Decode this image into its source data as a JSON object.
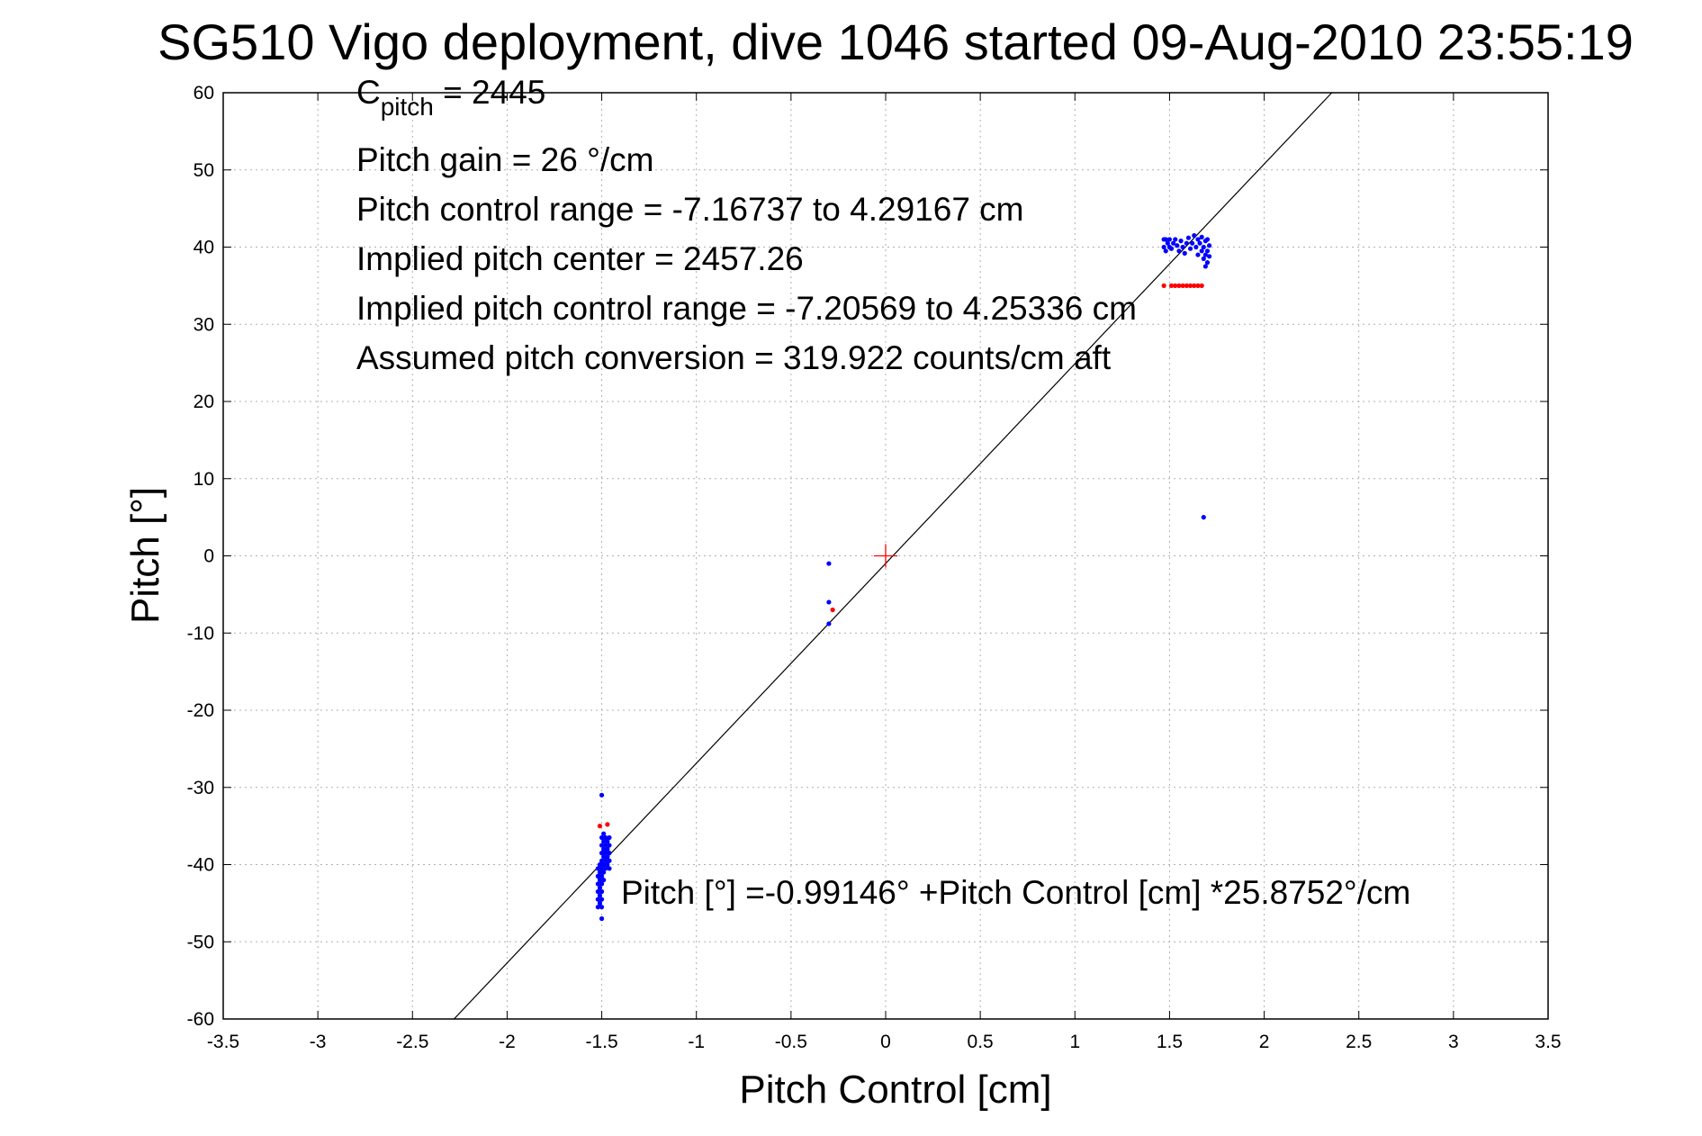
{
  "chart_data": {
    "type": "scatter",
    "title": "SG510 Vigo deployment, dive 1046 started 09-Aug-2010 23:55:19",
    "xlabel": "Pitch Control [cm]",
    "ylabel": "Pitch [°]",
    "xlim": [
      -3.5,
      3.5
    ],
    "ylim": [
      -60,
      60
    ],
    "grid": true,
    "x_ticks": [
      -3.5,
      -3,
      -2.5,
      -2,
      -1.5,
      -1,
      -0.5,
      0,
      0.5,
      1,
      1.5,
      2,
      2.5,
      3,
      3.5
    ],
    "x_tick_labels": [
      "-3.5",
      "-3",
      "-2.5",
      "-2",
      "-1.5",
      "-1",
      "-0.5",
      "0",
      "0.5",
      "1",
      "1.5",
      "2",
      "2.5",
      "3",
      "3.5"
    ],
    "y_ticks": [
      60,
      50,
      40,
      30,
      20,
      10,
      0,
      -10,
      -20,
      -30,
      -40,
      -50,
      -60
    ],
    "y_tick_labels": [
      "60",
      "50",
      "40",
      "30",
      "20",
      "10",
      "0",
      "-10",
      "-20",
      "-30",
      "-40",
      "-50",
      "-60"
    ],
    "fit_line": {
      "intercept": -0.99146,
      "slope": 25.8752,
      "color": "#000000"
    },
    "center_marker": {
      "x": 0,
      "y": 0,
      "color": "#ff0000"
    },
    "annotations": {
      "c_pitch_main": "C",
      "c_pitch_sub": "pitch",
      "c_pitch_value": " = 2445",
      "pitch_gain": "Pitch gain = 26 °/cm",
      "pitch_control_range": "Pitch control range = -7.16737 to 4.29167 cm",
      "implied_pitch_center": "Implied pitch center = 2457.26",
      "implied_pitch_control_range": "Implied pitch control range = -7.20569 to 4.25336 cm",
      "assumed_pitch_conversion": "Assumed pitch conversion = 319.922 counts/cm aft",
      "fit_equation": "Pitch [°] =-0.99146° +Pitch Control [cm] *25.8752°/cm"
    },
    "series": [
      {
        "color": "#0000ff",
        "points": [
          [
            -1.52,
            -40.5
          ],
          [
            -1.52,
            -41.5
          ],
          [
            -1.52,
            -42.5
          ],
          [
            -1.52,
            -43.5
          ],
          [
            -1.52,
            -44.5
          ],
          [
            -1.52,
            -45.5
          ],
          [
            -1.51,
            -40.0
          ],
          [
            -1.51,
            -41.0
          ],
          [
            -1.51,
            -42.0
          ],
          [
            -1.51,
            -43.0
          ],
          [
            -1.51,
            -44.0
          ],
          [
            -1.51,
            -45.0
          ],
          [
            -1.5,
            -36.5
          ],
          [
            -1.5,
            -37.5
          ],
          [
            -1.5,
            -38.5
          ],
          [
            -1.5,
            -39.5
          ],
          [
            -1.5,
            -40.5
          ],
          [
            -1.5,
            -41.5
          ],
          [
            -1.5,
            -42.5
          ],
          [
            -1.5,
            -43.5
          ],
          [
            -1.5,
            -44.5
          ],
          [
            -1.5,
            -45.5
          ],
          [
            -1.5,
            -47.0
          ],
          [
            -1.5,
            -31.0
          ],
          [
            -1.49,
            -36.0
          ],
          [
            -1.49,
            -37.0
          ],
          [
            -1.49,
            -38.0
          ],
          [
            -1.49,
            -39.0
          ],
          [
            -1.49,
            -40.0
          ],
          [
            -1.49,
            -41.0
          ],
          [
            -1.49,
            -42.0
          ],
          [
            -1.48,
            -36.5
          ],
          [
            -1.48,
            -37.5
          ],
          [
            -1.48,
            -38.5
          ],
          [
            -1.48,
            -39.5
          ],
          [
            -1.48,
            -40.5
          ],
          [
            -1.47,
            -37.0
          ],
          [
            -1.47,
            -38.0
          ],
          [
            -1.47,
            -39.0
          ],
          [
            -1.47,
            -40.0
          ],
          [
            -1.46,
            -36.5
          ],
          [
            -1.46,
            -37.5
          ],
          [
            -1.46,
            -38.5
          ],
          [
            -1.46,
            -39.5
          ],
          [
            -1.46,
            -40.5
          ],
          [
            -0.3,
            -1.0
          ],
          [
            -0.3,
            -6.0
          ],
          [
            -0.3,
            -8.8
          ],
          [
            1.47,
            41.0
          ],
          [
            1.47,
            40.0
          ],
          [
            1.48,
            39.5
          ],
          [
            1.48,
            41.0
          ],
          [
            1.49,
            40.5
          ],
          [
            1.5,
            40.0
          ],
          [
            1.5,
            41.0
          ],
          [
            1.51,
            39.8
          ],
          [
            1.52,
            40.5
          ],
          [
            1.53,
            41.0
          ],
          [
            1.54,
            40.2
          ],
          [
            1.55,
            39.5
          ],
          [
            1.56,
            40.8
          ],
          [
            1.57,
            40.0
          ],
          [
            1.58,
            39.2
          ],
          [
            1.59,
            40.5
          ],
          [
            1.6,
            41.2
          ],
          [
            1.61,
            39.8
          ],
          [
            1.62,
            40.5
          ],
          [
            1.63,
            41.5
          ],
          [
            1.64,
            40.0
          ],
          [
            1.65,
            39.0
          ],
          [
            1.65,
            41.0
          ],
          [
            1.66,
            40.5
          ],
          [
            1.67,
            39.5
          ],
          [
            1.67,
            41.3
          ],
          [
            1.68,
            38.5
          ],
          [
            1.68,
            40.0
          ],
          [
            1.69,
            37.5
          ],
          [
            1.69,
            39.0
          ],
          [
            1.69,
            40.8
          ],
          [
            1.7,
            38.0
          ],
          [
            1.7,
            39.5
          ],
          [
            1.7,
            41.0
          ],
          [
            1.71,
            40.2
          ],
          [
            1.71,
            38.8
          ],
          [
            1.68,
            5.0
          ]
        ]
      },
      {
        "color": "#ff0000",
        "points": [
          [
            -1.47,
            -34.8
          ],
          [
            -1.51,
            -35.0
          ],
          [
            -0.28,
            -7.0
          ],
          [
            1.47,
            35.0
          ],
          [
            1.51,
            35.0
          ],
          [
            1.53,
            35.0
          ],
          [
            1.55,
            35.0
          ],
          [
            1.57,
            35.0
          ],
          [
            1.59,
            35.0
          ],
          [
            1.61,
            35.0
          ],
          [
            1.63,
            35.0
          ],
          [
            1.65,
            35.0
          ],
          [
            1.67,
            35.0
          ]
        ]
      }
    ]
  }
}
